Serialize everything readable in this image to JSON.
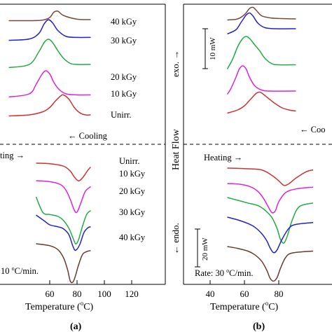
{
  "chart_data": [
    {
      "panel_label": "(a)",
      "type": "line",
      "xlabel": "Temperature (",
      "xlabel_sup": "o",
      "xlabel_tail": "C)",
      "xlim": [
        30,
        120
      ],
      "xticks": [
        60,
        80,
        100,
        120
      ],
      "tick_labels": [
        "60",
        "80",
        "100",
        "120"
      ],
      "cooling_label": "← Cooling",
      "heating_label": "ting →",
      "rate_label": "10 ",
      "rate_sup": "o",
      "rate_tail": "C/min.",
      "cooling_series": [
        {
          "name": "40 kGy",
          "color": "#7a4a3a",
          "x": [
            30,
            45,
            55,
            60,
            63,
            66,
            70,
            80,
            90
          ],
          "y": [
            0.05,
            0.05,
            0.08,
            0.2,
            0.45,
            0.5,
            0.3,
            0.12,
            0.1
          ]
        },
        {
          "name": "30 kGy",
          "color": "#2222cc",
          "x": [
            30,
            45,
            52,
            56,
            59,
            62,
            66,
            72,
            80,
            90
          ],
          "y": [
            0.05,
            0.12,
            0.4,
            0.9,
            1.1,
            0.95,
            0.55,
            0.25,
            0.2,
            0.2
          ]
        },
        {
          "name": "20 kGy",
          "color": "#22aa44",
          "x": [
            30,
            45,
            52,
            56,
            59,
            62,
            66,
            70,
            75,
            80,
            90
          ],
          "y": [
            0.05,
            0.2,
            0.8,
            1.25,
            1.4,
            1.25,
            0.85,
            0.5,
            0.25,
            0.2,
            0.2
          ]
        },
        {
          "name": "10 kGy",
          "color": "#dd22dd",
          "x": [
            30,
            45,
            50,
            54,
            57,
            60,
            63,
            67,
            72,
            80,
            90
          ],
          "y": [
            0.05,
            0.2,
            0.65,
            1.1,
            1.3,
            1.15,
            0.75,
            0.4,
            0.2,
            0.15,
            0.15
          ]
        },
        {
          "name": "Unirr.",
          "color": "#cc3333",
          "x": [
            30,
            45,
            55,
            60,
            64,
            68,
            70,
            74,
            78,
            82,
            86,
            90
          ],
          "y": [
            0.05,
            0.1,
            0.25,
            0.45,
            0.75,
            1.0,
            1.05,
            0.85,
            0.45,
            0.2,
            0.1,
            0.1
          ]
        }
      ],
      "heating_series": [
        {
          "name": "Unirr.",
          "color": "#cc3333",
          "x": [
            50,
            60,
            70,
            75,
            78,
            81,
            84,
            88,
            90
          ],
          "y": [
            0,
            -0.03,
            -0.15,
            -0.4,
            -0.7,
            -0.9,
            -0.75,
            -0.35,
            -0.2
          ]
        },
        {
          "name": "10 kGy",
          "color": "#dd22dd",
          "x": [
            50,
            60,
            68,
            72,
            75,
            78,
            80,
            83,
            86,
            90
          ],
          "y": [
            0,
            -0.05,
            -0.2,
            -0.5,
            -0.95,
            -1.5,
            -1.6,
            -1.1,
            -0.55,
            -0.3
          ]
        },
        {
          "name": "20 kGy",
          "color": "#22aa44",
          "x": [
            50,
            55,
            60,
            66,
            70,
            74,
            77,
            79,
            81,
            84,
            87,
            90
          ],
          "y": [
            0,
            -0.8,
            -0.9,
            -1.0,
            -1.2,
            -1.6,
            -2.1,
            -2.4,
            -2.2,
            -1.5,
            -0.9,
            -0.7
          ]
        },
        {
          "name": "30 kGy",
          "color": "#2222cc",
          "x": [
            50,
            56,
            60,
            66,
            70,
            74,
            77,
            79,
            82,
            85,
            88,
            90
          ],
          "y": [
            0,
            -0.3,
            -0.5,
            -0.6,
            -0.7,
            -1.0,
            -1.6,
            -1.8,
            -1.5,
            -0.9,
            -0.65,
            -0.6
          ]
        },
        {
          "name": "40 kGy",
          "color": "#6a3a30",
          "x": [
            50,
            60,
            66,
            70,
            73,
            75,
            77,
            79,
            81,
            84,
            87,
            90
          ],
          "y": [
            0,
            -0.1,
            -0.3,
            -0.7,
            -1.3,
            -1.9,
            -1.95,
            -1.6,
            -1.1,
            -0.55,
            -0.4,
            -0.35
          ]
        }
      ],
      "cooling_labels": [
        "40 kGy",
        "30 kGy",
        "20 kGy",
        "10 kGy",
        "Unirr."
      ],
      "heating_labels": [
        "Unirr.",
        "10 kGy",
        "20 kGy",
        "30 kGy",
        "40 kGy"
      ]
    },
    {
      "panel_label": "(b)",
      "type": "line",
      "xlabel": "Temperature (",
      "xlabel_sup": "o",
      "xlabel_tail": "C)",
      "ylabel": "Heat Flow",
      "exo_label": "exo. →",
      "endo_label": "← endo.",
      "scale_top": "10 mW",
      "scale_bottom": "20 mW",
      "xlim": [
        30,
        105
      ],
      "xticks": [
        40,
        60,
        80
      ],
      "tick_labels": [
        "40",
        "60",
        "80"
      ],
      "cooling_label": "← Coo",
      "heating_label": "Heating →",
      "rate_label": "Rate: 30 ",
      "rate_sup": "o",
      "rate_tail": "C/min.",
      "cooling_series": [
        {
          "name": "40 kGy",
          "color": "#7a4a3a",
          "x": [
            50,
            56,
            60,
            63,
            65,
            67,
            70,
            75,
            80,
            90
          ],
          "y": [
            0.05,
            0.1,
            0.3,
            0.6,
            0.65,
            0.5,
            0.25,
            0.15,
            0.12,
            0.1
          ]
        },
        {
          "name": "30 kGy",
          "color": "#2222cc",
          "x": [
            50,
            55,
            58,
            61,
            63,
            65,
            68,
            72,
            78,
            90
          ],
          "y": [
            0.05,
            0.25,
            0.6,
            0.95,
            1.05,
            0.9,
            0.55,
            0.35,
            0.3,
            0.3
          ]
        },
        {
          "name": "20 kGy",
          "color": "#22aa44",
          "x": [
            50,
            53,
            56,
            59,
            61,
            63,
            66,
            69,
            72,
            76,
            80,
            90
          ],
          "y": [
            0.05,
            0.5,
            1.1,
            1.5,
            1.6,
            1.5,
            1.2,
            0.9,
            0.55,
            0.3,
            0.25,
            0.25
          ]
        },
        {
          "name": "10 kGy",
          "color": "#dd22dd",
          "x": [
            50,
            52,
            55,
            57,
            59,
            61,
            63,
            66,
            70,
            75,
            90
          ],
          "y": [
            0.05,
            0.3,
            0.85,
            1.25,
            1.4,
            1.25,
            0.85,
            0.45,
            0.25,
            0.2,
            0.2
          ]
        },
        {
          "name": "Unirr.",
          "color": "#cc3333",
          "x": [
            50,
            56,
            60,
            64,
            67,
            69,
            71,
            74,
            78,
            82,
            86,
            90
          ],
          "y": [
            0.05,
            0.2,
            0.4,
            0.75,
            1.0,
            1.05,
            0.95,
            0.75,
            0.5,
            0.3,
            0.2,
            0.15
          ]
        }
      ],
      "heating_series": [
        {
          "name": "Unirr.",
          "color": "#cc3333",
          "x": [
            50,
            60,
            70,
            76,
            80,
            83,
            86,
            90,
            96,
            100
          ],
          "y": [
            0,
            -0.03,
            -0.1,
            -0.4,
            -0.7,
            -0.95,
            -0.85,
            -0.55,
            -0.2,
            -0.1
          ]
        },
        {
          "name": "10 kGy",
          "color": "#dd22dd",
          "x": [
            50,
            58,
            64,
            68,
            71,
            74,
            76,
            78,
            80,
            84,
            90,
            100
          ],
          "y": [
            0,
            -0.05,
            -0.2,
            -0.45,
            -0.8,
            -1.3,
            -1.6,
            -1.5,
            -1.0,
            -0.5,
            -0.3,
            -0.2
          ]
        },
        {
          "name": "20 kGy",
          "color": "#22aa44",
          "x": [
            50,
            56,
            62,
            68,
            72,
            76,
            79,
            81,
            83,
            85,
            88,
            92,
            100
          ],
          "y": [
            0,
            -0.15,
            -0.3,
            -0.45,
            -0.7,
            -1.1,
            -1.7,
            -2.3,
            -2.5,
            -2.1,
            -1.2,
            -0.5,
            -0.3
          ]
        },
        {
          "name": "30 kGy",
          "color": "#2222cc",
          "x": [
            50,
            56,
            62,
            66,
            70,
            73,
            75,
            77,
            79,
            82,
            86,
            90,
            100
          ],
          "y": [
            0,
            -0.15,
            -0.35,
            -0.55,
            -0.9,
            -1.3,
            -1.7,
            -1.95,
            -1.8,
            -1.2,
            -0.6,
            -0.4,
            -0.3
          ]
        },
        {
          "name": "40 kGy",
          "color": "#6a3a30",
          "x": [
            50,
            56,
            62,
            66,
            70,
            73,
            75,
            77,
            79,
            81,
            84,
            88,
            100
          ],
          "y": [
            0,
            -0.1,
            -0.25,
            -0.45,
            -0.8,
            -1.3,
            -1.75,
            -1.9,
            -1.7,
            -1.2,
            -0.6,
            -0.35,
            -0.25
          ]
        }
      ]
    }
  ]
}
